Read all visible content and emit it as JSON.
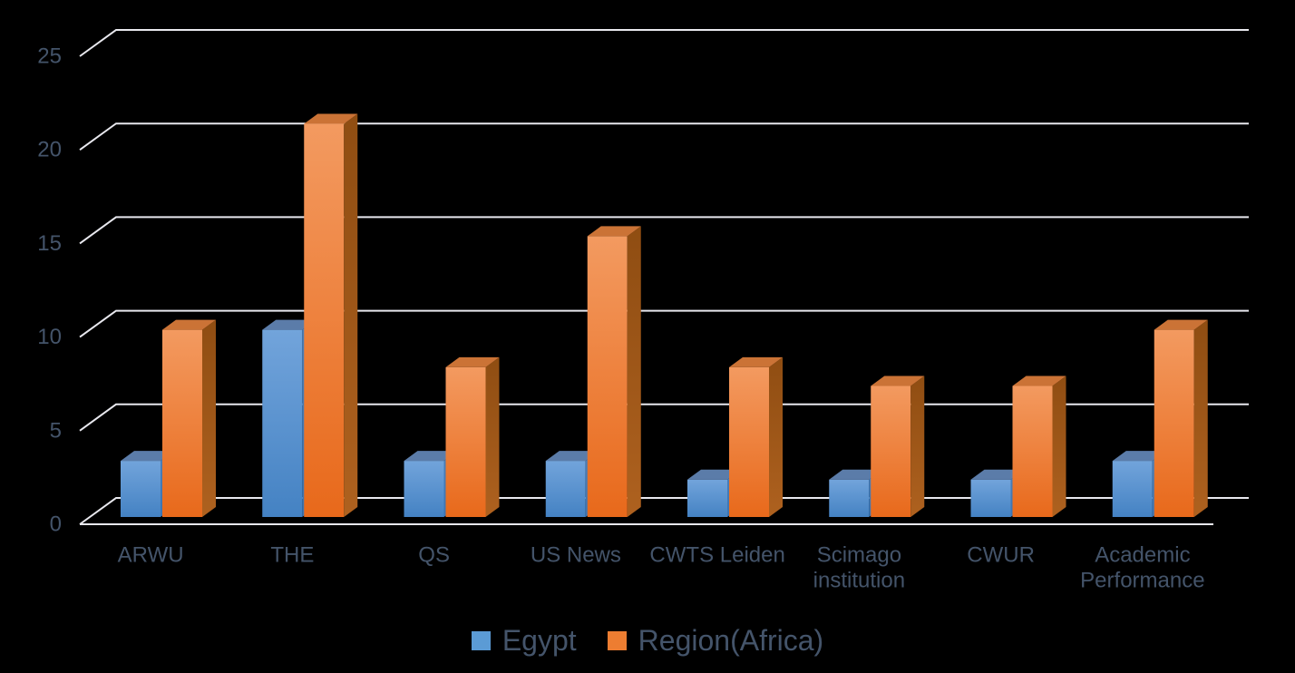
{
  "chart_data": {
    "type": "bar",
    "variant": "3d-clustered-column",
    "title": "",
    "xlabel": "",
    "ylabel": "",
    "ylim": [
      0,
      25
    ],
    "y_ticks": [
      0,
      5,
      10,
      15,
      20,
      25
    ],
    "grid": true,
    "legend_position": "bottom-center",
    "background_color": "#000000",
    "text_color": "#44546A",
    "gridline_color": "#E8E8EE",
    "categories": [
      "ARWU",
      "THE",
      "QS",
      "US News",
      "CWTS Leiden",
      "Scimago institution",
      "CWUR",
      "Academic Performance"
    ],
    "category_lines": [
      [
        "ARWU"
      ],
      [
        "THE"
      ],
      [
        "QS"
      ],
      [
        "US News"
      ],
      [
        "CWTS Leiden"
      ],
      [
        "Scimago",
        "institution"
      ],
      [
        "CWUR"
      ],
      [
        "Academic",
        "Performance"
      ]
    ],
    "series": [
      {
        "name": "Egypt",
        "color": "#5B9BD5",
        "front_gradient": [
          "#72A4DB",
          "#4482C3"
        ],
        "top_color": "#5B7CA9",
        "side_color": "#3C74B2",
        "values": [
          3,
          10,
          3,
          3,
          2,
          2,
          2,
          3
        ]
      },
      {
        "name": "Region(Africa)",
        "color": "#ED7D31",
        "front_gradient": [
          "#F39A60",
          "#E8691B"
        ],
        "top_color": "#CB7336",
        "side_color": "#9E5615",
        "values": [
          10,
          21,
          8,
          15,
          8,
          7,
          7,
          10
        ]
      }
    ]
  }
}
